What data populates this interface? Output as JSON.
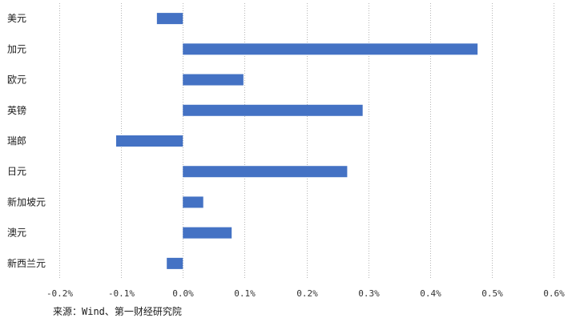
{
  "chart_data": {
    "type": "bar",
    "orientation": "horizontal",
    "categories": [
      "美元",
      "加元",
      "欧元",
      "英镑",
      "瑞郎",
      "日元",
      "新加坡元",
      "澳元",
      "新西兰元"
    ],
    "values": [
      -0.042,
      0.477,
      0.098,
      0.291,
      -0.108,
      0.266,
      0.033,
      0.079,
      -0.026
    ],
    "unit": "%",
    "xlim": [
      -0.2,
      0.6
    ],
    "xticks": [
      "-0.2%",
      "-0.1%",
      "0.0%",
      "0.1%",
      "0.2%",
      "0.3%",
      "0.4%",
      "0.5%",
      "0.6%"
    ],
    "grid": "vertical dotted",
    "bar_color": "#4472C4"
  },
  "source": "来源：Wind、第一财经研究院"
}
